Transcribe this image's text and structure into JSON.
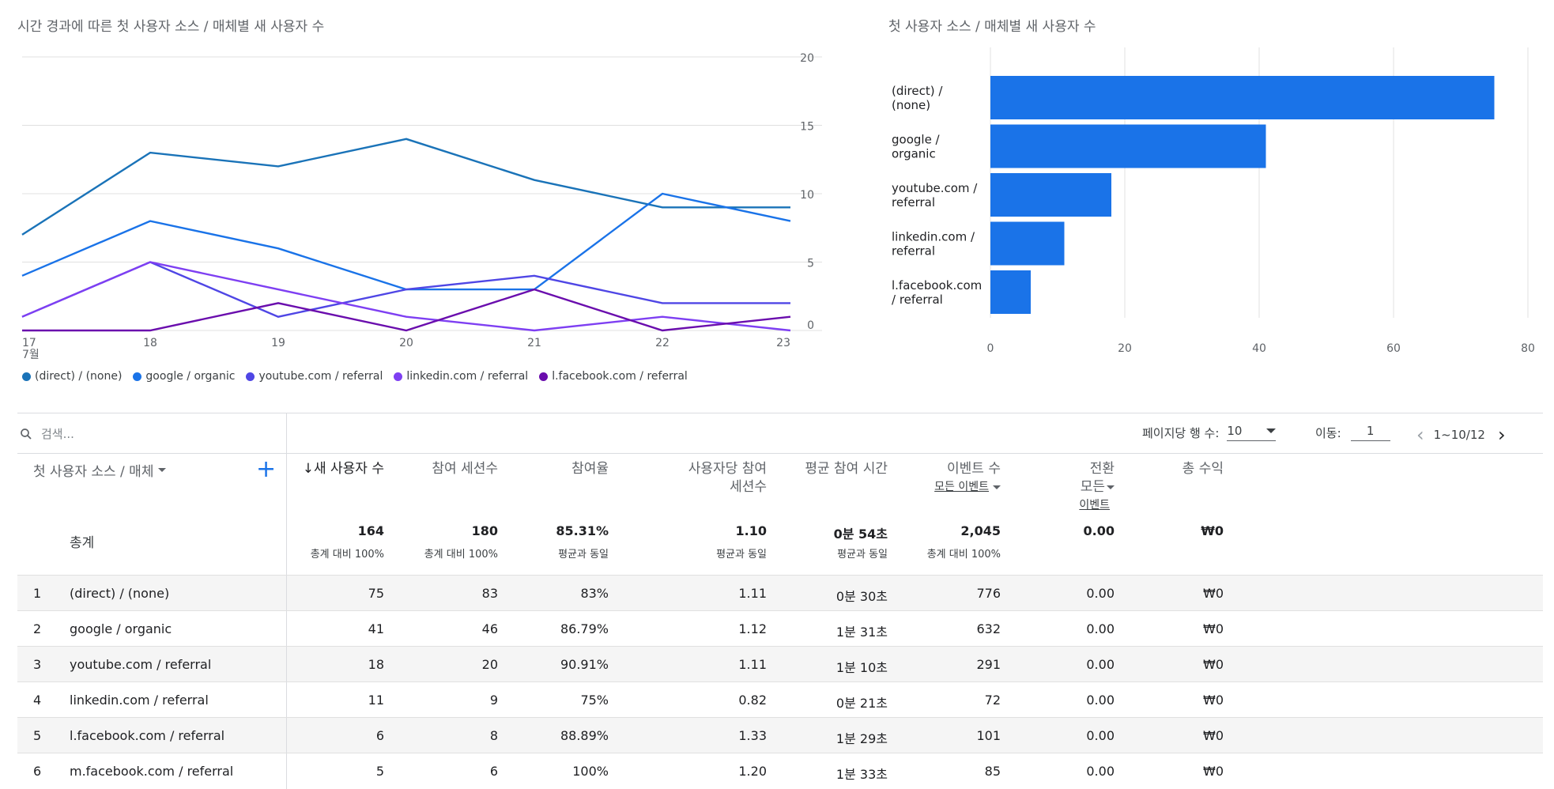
{
  "line_chart": {
    "title": "시간 경과에 따른 첫 사용자 소스 / 매체별 새 사용자 수",
    "x_month_label": "7월",
    "y_ticks": [
      "20",
      "15",
      "10",
      "5",
      "0"
    ]
  },
  "bar_chart": {
    "title": "첫 사용자 소스 / 매체별 새 사용자 수"
  },
  "chart_data": [
    {
      "type": "line",
      "title": "시간 경과에 따른 첫 사용자 소스 / 매체별 새 사용자 수",
      "x": [
        "17",
        "18",
        "19",
        "20",
        "21",
        "22",
        "23"
      ],
      "ylim": [
        0,
        20
      ],
      "y_ticks": [
        0,
        5,
        10,
        15,
        20
      ],
      "grid": true,
      "legend_position": "bottom-left",
      "series": [
        {
          "name": "(direct) / (none)",
          "color": "#1a73b8",
          "values": [
            7,
            13,
            12,
            14,
            11,
            9,
            9
          ]
        },
        {
          "name": "google / organic",
          "color": "#1a73e8",
          "values": [
            4,
            8,
            6,
            3,
            3,
            10,
            8
          ]
        },
        {
          "name": "youtube.com / referral",
          "color": "#4f46e5",
          "values": [
            1,
            5,
            1,
            3,
            4,
            2,
            2
          ]
        },
        {
          "name": "linkedin.com / referral",
          "color": "#7e3ff2",
          "values": [
            1,
            5,
            3,
            1,
            0,
            1,
            0
          ]
        },
        {
          "name": "l.facebook.com / referral",
          "color": "#6a0dad",
          "values": [
            0,
            0,
            2,
            0,
            3,
            0,
            1
          ]
        }
      ]
    },
    {
      "type": "bar",
      "orientation": "horizontal",
      "title": "첫 사용자 소스 / 매체별 새 사용자 수",
      "categories": [
        [
          "(direct) /",
          "(none)"
        ],
        [
          "google /",
          "organic"
        ],
        [
          "youtube.com /",
          "referral"
        ],
        [
          "linkedin.com /",
          "referral"
        ],
        [
          "l.facebook.com",
          "/ referral"
        ]
      ],
      "values": [
        75,
        41,
        18,
        11,
        6
      ],
      "xlim": [
        0,
        80
      ],
      "x_ticks": [
        0,
        20,
        40,
        60,
        80
      ],
      "color": "#1a73e8",
      "grid": true
    }
  ],
  "toolbar": {
    "search_placeholder": "검색...",
    "rows_per_page_label": "페이지당 행 수:",
    "rows_per_page_value": "10",
    "goto_label": "이동:",
    "goto_value": "1",
    "range_label": "1~10/12"
  },
  "table": {
    "dimension_header": "첫 사용자 소스 / 매체",
    "headers": {
      "new_users": "새 사용자 수",
      "engaged_sessions": "참여 세션수",
      "engagement_rate": "참여율",
      "sessions_per_user_1": "사용자당 참여",
      "sessions_per_user_2": "세션수",
      "avg_time": "평균 참여 시간",
      "event_count": "이벤트 수",
      "event_count_sub": "모든 이벤트",
      "conversions_1": "전환",
      "conversions_2": "모든",
      "conversions_sub": "이벤트",
      "revenue": "총 수익"
    },
    "totals": {
      "label": "총계",
      "new_users": "164",
      "new_users_sub": "총계 대비 100%",
      "engaged_sessions": "180",
      "engaged_sessions_sub": "총계 대비 100%",
      "engagement_rate": "85.31%",
      "engagement_rate_sub": "평균과 동일",
      "sessions_per_user": "1.10",
      "sessions_per_user_sub": "평균과 동일",
      "avg_time": "0분 54초",
      "avg_time_sub": "평균과 동일",
      "event_count": "2,045",
      "event_count_sub": "총계 대비 100%",
      "conversions": "0.00",
      "revenue": "₩0"
    },
    "rows": [
      {
        "n": "1",
        "name": "(direct) / (none)",
        "new_users": "75",
        "engaged": "83",
        "rate": "83%",
        "spu": "1.11",
        "time": "0분 30초",
        "events": "776",
        "conv": "0.00",
        "rev": "₩0"
      },
      {
        "n": "2",
        "name": "google / organic",
        "new_users": "41",
        "engaged": "46",
        "rate": "86.79%",
        "spu": "1.12",
        "time": "1분 31초",
        "events": "632",
        "conv": "0.00",
        "rev": "₩0"
      },
      {
        "n": "3",
        "name": "youtube.com / referral",
        "new_users": "18",
        "engaged": "20",
        "rate": "90.91%",
        "spu": "1.11",
        "time": "1분 10초",
        "events": "291",
        "conv": "0.00",
        "rev": "₩0"
      },
      {
        "n": "4",
        "name": "linkedin.com / referral",
        "new_users": "11",
        "engaged": "9",
        "rate": "75%",
        "spu": "0.82",
        "time": "0분 21초",
        "events": "72",
        "conv": "0.00",
        "rev": "₩0"
      },
      {
        "n": "5",
        "name": "l.facebook.com / referral",
        "new_users": "6",
        "engaged": "8",
        "rate": "88.89%",
        "spu": "1.33",
        "time": "1분 29초",
        "events": "101",
        "conv": "0.00",
        "rev": "₩0"
      },
      {
        "n": "6",
        "name": "m.facebook.com / referral",
        "new_users": "5",
        "engaged": "6",
        "rate": "100%",
        "spu": "1.20",
        "time": "1분 33초",
        "events": "85",
        "conv": "0.00",
        "rev": "₩0"
      }
    ]
  }
}
